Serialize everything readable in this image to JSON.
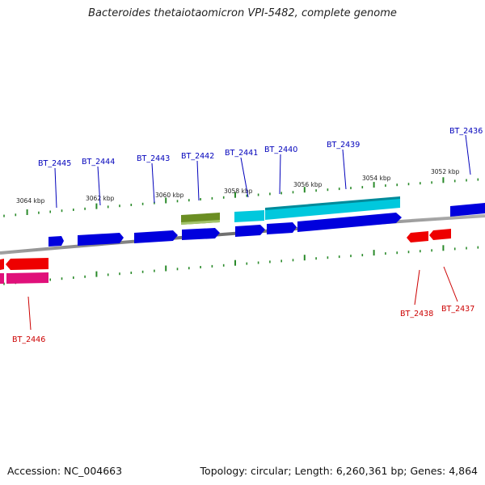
{
  "title": "Bacteroides thetaiotaomicron VPI-5482, complete genome",
  "footer": {
    "accession_label": "Accession:",
    "accession": "NC_004663",
    "topology_label": "Topology:",
    "topology": "circular",
    "length_label": "Length:",
    "length": "6,260,361 bp",
    "genes_label": "Genes:",
    "genes": "4,864"
  },
  "colors": {
    "forward_gene": "#0000dd",
    "reverse_gene": "#ee0000",
    "forward_label": "#0000bb",
    "reverse_label": "#cc0000",
    "cyan_gene": "#00c8dd",
    "olive_gene": "#6b8e23",
    "magenta_gene": "#e0107a",
    "tick": "#2a8a2a",
    "backbone": "#808080"
  },
  "kbp_labels": [
    {
      "text": "3064 kbp",
      "kbp": 3064
    },
    {
      "text": "3062 kbp",
      "kbp": 3062
    },
    {
      "text": "3060 kbp",
      "kbp": 3060
    },
    {
      "text": "3058 kbp",
      "kbp": 3058
    },
    {
      "text": "3056 kbp",
      "kbp": 3056
    },
    {
      "text": "3054 kbp",
      "kbp": 3054
    },
    {
      "text": "3052 kbp",
      "kbp": 3052
    }
  ],
  "forward_gene_labels": [
    "BT_2445",
    "BT_2444",
    "BT_2443",
    "BT_2442",
    "BT_2441",
    "BT_2440",
    "BT_2439",
    "BT_2436"
  ],
  "reverse_gene_labels": [
    "BT_2446",
    "BT_2438",
    "BT_2437"
  ]
}
